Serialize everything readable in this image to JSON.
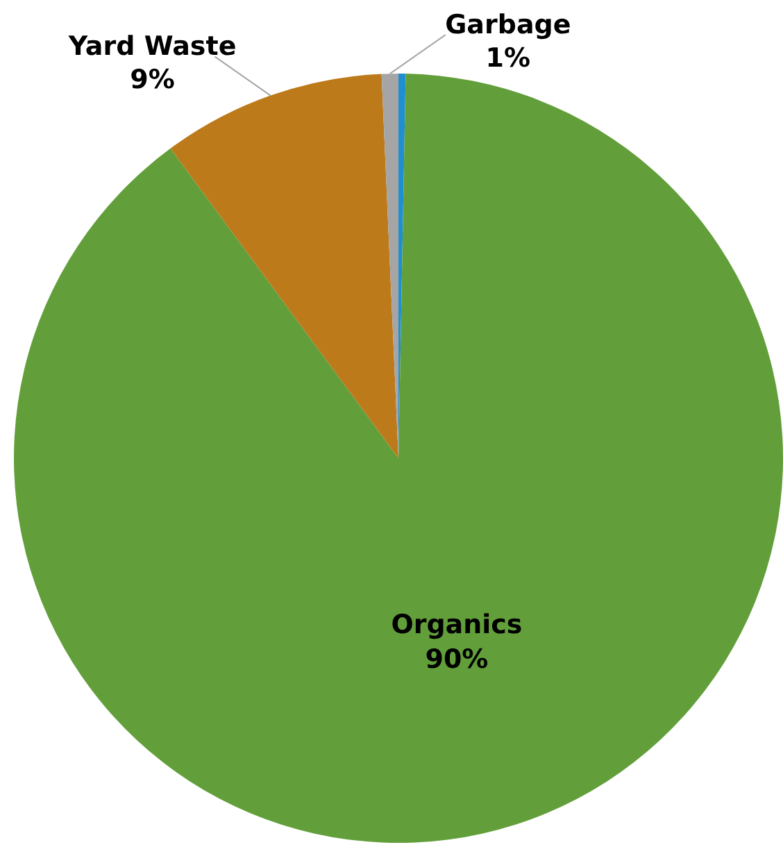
{
  "chart_data": {
    "type": "pie",
    "categories": [
      null,
      "Organics",
      "Yard Waste",
      "Garbage"
    ],
    "values": [
      0.3,
      89.6,
      9.4,
      0.7
    ],
    "value_labels": [
      null,
      "90%",
      "9%",
      "1%"
    ],
    "colors": [
      "#1f8fd0",
      "#629f3a",
      "#bd7a1a",
      "#a5a5a5"
    ],
    "legend": false
  }
}
